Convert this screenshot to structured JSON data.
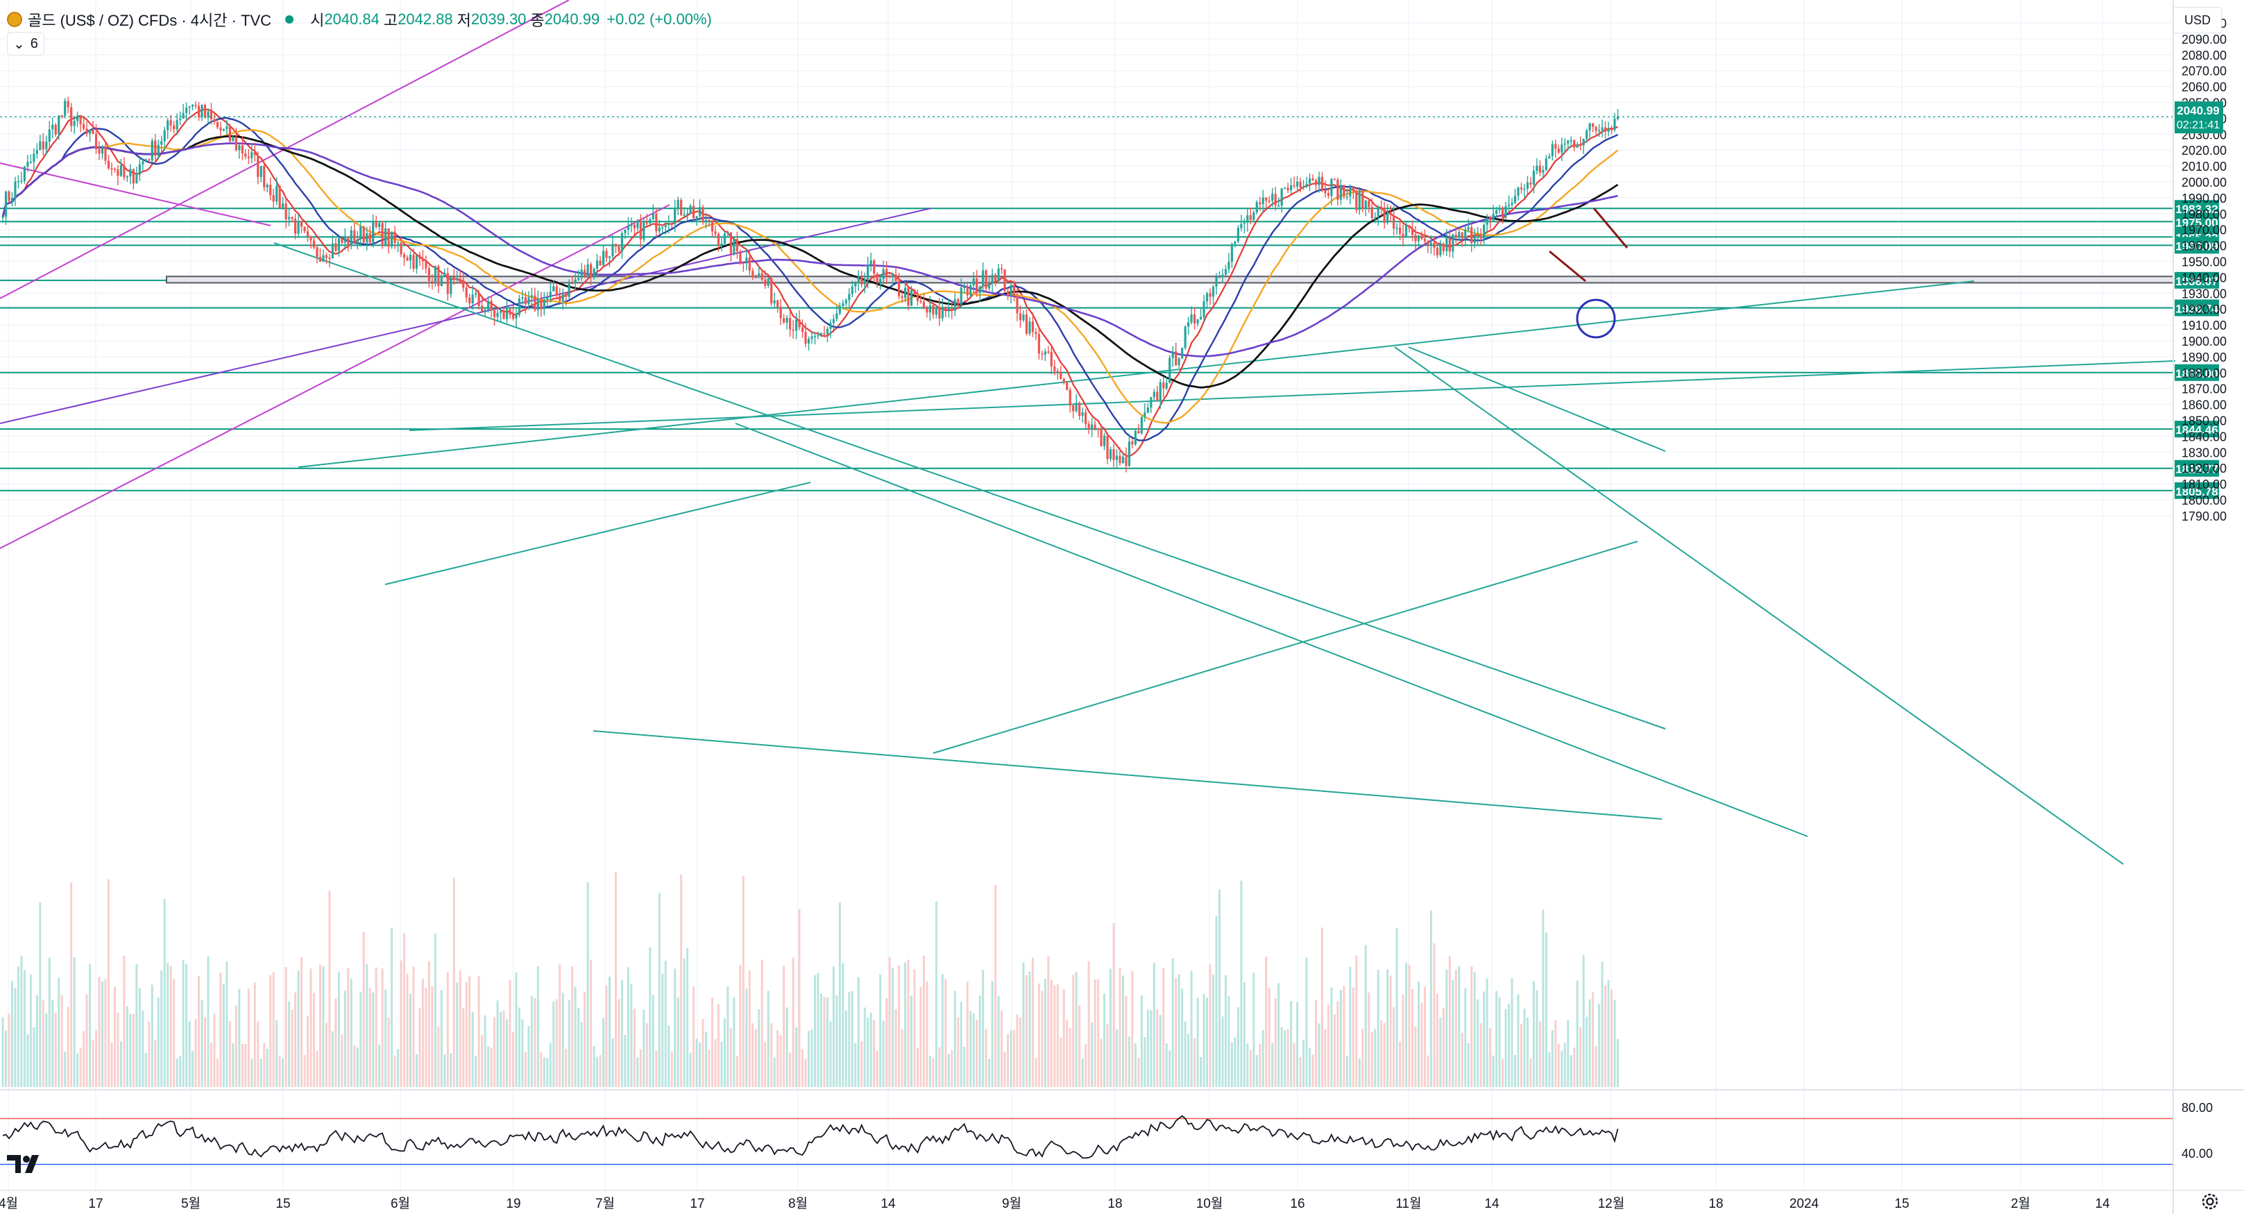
{
  "header": {
    "symbol_title": "골드 (US$ / OZ) CFDs · 4시간 · TVC",
    "open_label": "시",
    "open_value": "2040.84",
    "high_label": "고",
    "high_value": "2042.88",
    "low_label": "저",
    "low_value": "2039.30",
    "close_label": "종",
    "close_value": "2040.99",
    "change": "+0.02 (+0.00%)",
    "indicator_count": "6"
  },
  "price_axis": {
    "currency": "USD",
    "ticks": [
      "2100.00",
      "2090.00",
      "2080.00",
      "2070.00",
      "2060.00",
      "2050.00",
      "2040.00",
      "2030.00",
      "2020.00",
      "2010.00",
      "2000.00",
      "1990.00",
      "1980.00",
      "1970.00",
      "1960.00",
      "1950.00",
      "1940.00",
      "1930.00",
      "1920.00",
      "1910.00",
      "1900.00",
      "1890.00",
      "1880.00",
      "1870.00",
      "1860.00",
      "1850.00",
      "1840.00",
      "1830.00",
      "1820.00",
      "1810.00",
      "1800.00",
      "1790.00"
    ],
    "last_price_label": "2040.99",
    "countdown": "02:21:41",
    "level_labels": [
      "1983.32",
      "1975.00",
      "1965.33",
      "1960.09",
      "1938.07",
      "1920.74",
      "1880.00",
      "1844.46",
      "1819.77",
      "1805.78"
    ]
  },
  "rsi_axis": {
    "ticks": [
      "80.00",
      "40.00"
    ]
  },
  "time_axis": {
    "labels": [
      "4월",
      "17",
      "5월",
      "15",
      "6월",
      "19",
      "7월",
      "17",
      "8월",
      "14",
      "9월",
      "18",
      "10월",
      "16",
      "11월",
      "14",
      "12월",
      "18",
      "2024",
      "15",
      "2월",
      "14"
    ]
  },
  "chart_data": {
    "type": "candlestick",
    "title": "골드 (US$ / OZ) CFDs · 4시간 · TVC",
    "ylim": [
      1785,
      2110
    ],
    "last_close": 2040.99,
    "horizontal_levels": [
      1983.32,
      1975.0,
      1965.33,
      1960.09,
      1938.07,
      1920.74,
      1880.0,
      1844.46,
      1819.77,
      1805.78
    ],
    "close_path_approx": [
      {
        "x": "4월",
        "y": 1985
      },
      {
        "x": "17",
        "y": 2045
      },
      {
        "x": "5월",
        "y": 2000
      },
      {
        "x": "5월",
        "y": 2050
      },
      {
        "x": "15",
        "y": 2015
      },
      {
        "x": "6월",
        "y": 1955
      },
      {
        "x": "6월",
        "y": 1970
      },
      {
        "x": "19",
        "y": 1940
      },
      {
        "x": "7월",
        "y": 1915
      },
      {
        "x": "7월",
        "y": 1930
      },
      {
        "x": "17",
        "y": 1965
      },
      {
        "x": "17",
        "y": 1985
      },
      {
        "x": "8월",
        "y": 1950
      },
      {
        "x": "14",
        "y": 1895
      },
      {
        "x": "9월",
        "y": 1945
      },
      {
        "x": "18",
        "y": 1915
      },
      {
        "x": "18",
        "y": 1945
      },
      {
        "x": "10월",
        "y": 1875
      },
      {
        "x": "10월",
        "y": 1820
      },
      {
        "x": "16",
        "y": 1900
      },
      {
        "x": "16",
        "y": 1975
      },
      {
        "x": "11월",
        "y": 2005
      },
      {
        "x": "11월",
        "y": 1985
      },
      {
        "x": "14",
        "y": 1955
      },
      {
        "x": "14",
        "y": 1975
      },
      {
        "x": "12월",
        "y": 2020
      },
      {
        "x": "12월",
        "y": 2040.99
      }
    ],
    "rsi": {
      "levels": [
        70,
        30
      ],
      "last": 61
    }
  },
  "colors": {
    "up": "#26a69a",
    "down": "#ef5350",
    "level": "#089981",
    "ma_red": "#e53935",
    "ma_blue": "#2940a8",
    "ma_orange": "#f5a623",
    "ma_black": "#111111",
    "ma_purple": "#6b3fc9",
    "trend_magenta": "#c23fd0",
    "trend_violet": "#7e3fd0",
    "trend_teal": "#22a696"
  }
}
